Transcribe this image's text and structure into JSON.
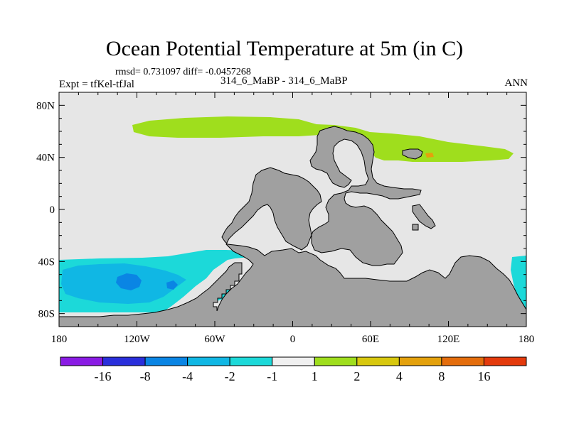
{
  "header": {
    "title": "Ocean Potential Temperature at 5m (in C)",
    "stats": "rmsd= 0.731097 diff= -0.0457268",
    "experiment": "Expt = tfKel-tfJal",
    "case": "314_6_MaBP - 314_6_MaBP",
    "season": "ANN"
  },
  "axes": {
    "lat_labels": [
      "80N",
      "40N",
      "0",
      "40S",
      "80S"
    ],
    "lon_labels": [
      "180",
      "120W",
      "60W",
      "0",
      "60E",
      "120E",
      "180"
    ]
  },
  "colors": {
    "land": "#a0a0a0",
    "ocean_neutral": "#e6e6e6",
    "range_1_2": "#9fde1d",
    "range_2_4": "#d8c80e",
    "range_4_8": "#e4a10c",
    "range_-1_-2": "#1cd9d9",
    "range_-2_-4": "#10b7e4",
    "range_-4_-8": "#0a85e4"
  },
  "colorbar": {
    "boxes": [
      "#8a1be4",
      "#2a2fdb",
      "#0a85e4",
      "#10b7e4",
      "#1cd9d9",
      "#f0f0f0",
      "#9fde1d",
      "#d8c80e",
      "#e4a10c",
      "#e46d0c",
      "#e43a0c"
    ],
    "labels": [
      "-16",
      "-8",
      "-4",
      "-2",
      "-1",
      "1",
      "2",
      "4",
      "8",
      "16"
    ]
  }
}
